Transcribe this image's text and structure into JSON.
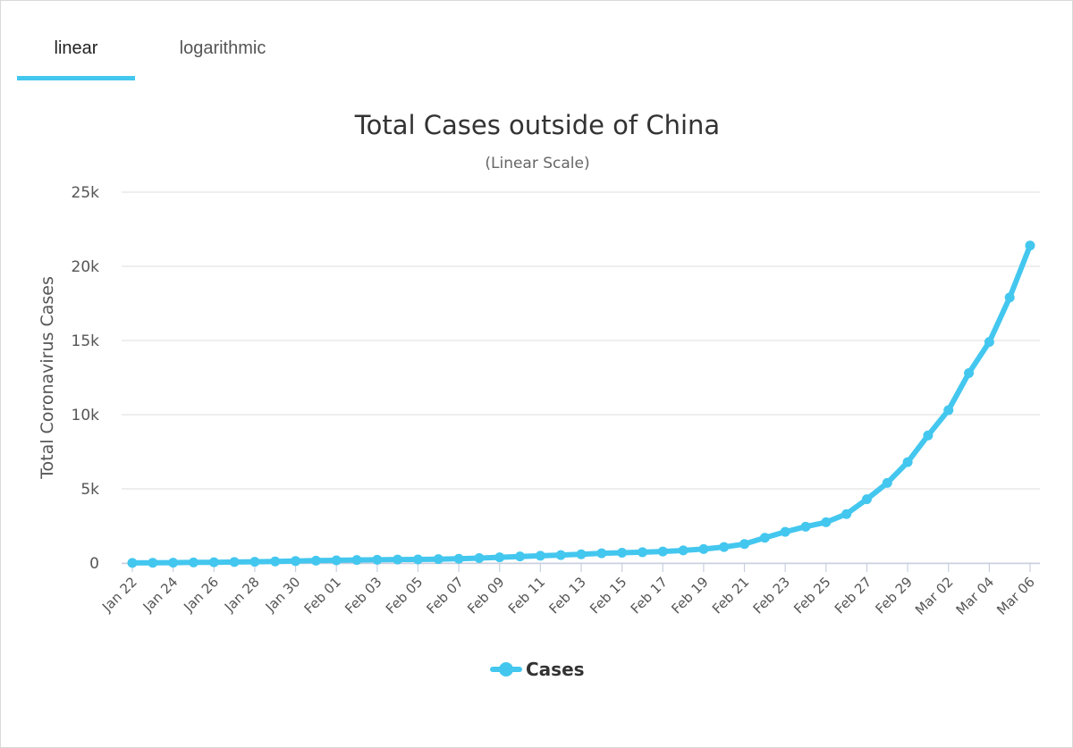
{
  "tabs": [
    {
      "label": "linear",
      "active": true
    },
    {
      "label": "logarithmic",
      "active": false
    }
  ],
  "colors": {
    "series": "#43c7ef",
    "grid": "#e3e3e3",
    "accent": "#43c7ef"
  },
  "chart_data": {
    "type": "line",
    "title": "Total Cases outside of China",
    "subtitle": "(Linear Scale)",
    "xlabel": "",
    "ylabel": "Total Coronavirus Cases",
    "ylim": [
      0,
      25000
    ],
    "yticks": [
      0,
      5000,
      10000,
      15000,
      20000,
      25000
    ],
    "ytick_labels": [
      "0",
      "5k",
      "10k",
      "15k",
      "20k",
      "25k"
    ],
    "x": [
      "Jan 22",
      "Jan 23",
      "Jan 24",
      "Jan 25",
      "Jan 26",
      "Jan 27",
      "Jan 28",
      "Jan 29",
      "Jan 30",
      "Jan 31",
      "Feb 01",
      "Feb 02",
      "Feb 03",
      "Feb 04",
      "Feb 05",
      "Feb 06",
      "Feb 07",
      "Feb 08",
      "Feb 09",
      "Feb 10",
      "Feb 11",
      "Feb 12",
      "Feb 13",
      "Feb 14",
      "Feb 15",
      "Feb 16",
      "Feb 17",
      "Feb 18",
      "Feb 19",
      "Feb 20",
      "Feb 21",
      "Feb 22",
      "Feb 23",
      "Feb 24",
      "Feb 25",
      "Feb 26",
      "Feb 27",
      "Feb 28",
      "Feb 29",
      "Mar 01",
      "Mar 02",
      "Mar 03",
      "Mar 04",
      "Mar 05",
      "Mar 06"
    ],
    "xtick_labels": [
      "Jan 22",
      "Jan 24",
      "Jan 26",
      "Jan 28",
      "Jan 30",
      "Feb 01",
      "Feb 03",
      "Feb 05",
      "Feb 07",
      "Feb 09",
      "Feb 11",
      "Feb 13",
      "Feb 15",
      "Feb 17",
      "Feb 19",
      "Feb 21",
      "Feb 23",
      "Feb 25",
      "Feb 27",
      "Feb 29",
      "Mar 02",
      "Mar 04",
      "Mar 06"
    ],
    "legend": "bottom-center",
    "grid": true,
    "series": [
      {
        "name": "Cases",
        "values": [
          7,
          15,
          23,
          40,
          51,
          69,
          84,
          104,
          132,
          160,
          182,
          202,
          219,
          232,
          243,
          262,
          289,
          331,
          385,
          442,
          490,
          534,
          588,
          655,
          692,
          727,
          779,
          852,
          942,
          1080,
          1280,
          1700,
          2100,
          2450,
          2750,
          3300,
          4300,
          5400,
          6800,
          8600,
          10300,
          12800,
          14900,
          17900,
          21400
        ]
      }
    ]
  }
}
